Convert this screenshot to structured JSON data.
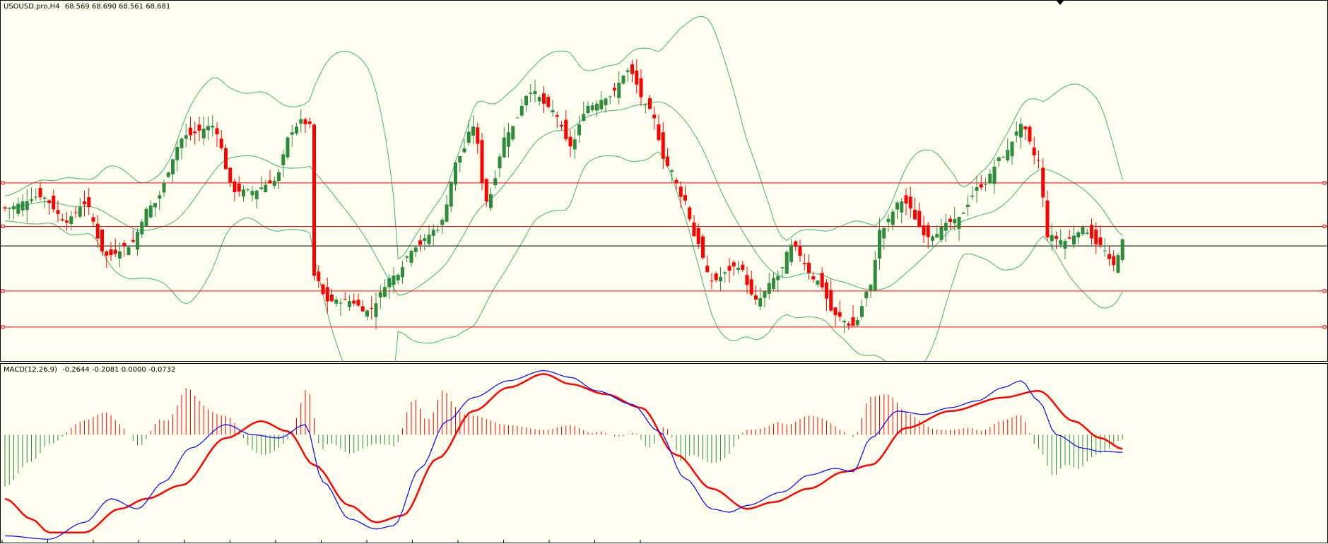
{
  "window": {
    "symbol": "USOUSD.pro,H4",
    "ohlc": "68.569 68.690 68.561 68.681"
  },
  "indicator": {
    "name": "MACD(12,26,9)",
    "values": "-0.2644 -0.2081 0.0000 -0.0732"
  },
  "colors": {
    "background": "#fffff0",
    "bull": "#2e8b3e",
    "bear": "#ff0000",
    "bands": "#3cb371",
    "level_lines": "#ff0000",
    "price_line": "#000000",
    "macd_line": "#0000ff",
    "signal_line": "#ff0000",
    "hist_positive": "#ff0000",
    "hist_negative": "#2e8b3e"
  },
  "chart_data": [
    {
      "type": "candlestick",
      "symbol": "USOUSD.pro",
      "timeframe": "H4",
      "ylim": [
        66.2,
        73.4
      ],
      "horizontal_levels": [
        69.76,
        68.89,
        67.6,
        66.88
      ],
      "bid_line": 68.5,
      "bollinger_bands": true,
      "anchors": [
        [
          0,
          69.25
        ],
        [
          8,
          69.5
        ],
        [
          14,
          69.0
        ],
        [
          18,
          69.35
        ],
        [
          23,
          68.3
        ],
        [
          28,
          68.5
        ],
        [
          33,
          69.3
        ],
        [
          41,
          70.7
        ],
        [
          47,
          70.9
        ],
        [
          52,
          69.6
        ],
        [
          56,
          69.6
        ],
        [
          61,
          69.8
        ],
        [
          65,
          70.8
        ],
        [
          67,
          71.0
        ],
        [
          69,
          70.9
        ],
        [
          70,
          67.9
        ],
        [
          73,
          67.4
        ],
        [
          78,
          67.4
        ],
        [
          82,
          67.2
        ],
        [
          88,
          67.9
        ],
        [
          93,
          68.5
        ],
        [
          98,
          68.85
        ],
        [
          103,
          70.3
        ],
        [
          106,
          70.9
        ],
        [
          109,
          69.4
        ],
        [
          114,
          70.8
        ],
        [
          119,
          71.6
        ],
        [
          124,
          71.2
        ],
        [
          128,
          70.5
        ],
        [
          132,
          71.3
        ],
        [
          137,
          71.5
        ],
        [
          141,
          72.0
        ],
        [
          146,
          71.2
        ],
        [
          150,
          70.1
        ],
        [
          154,
          69.4
        ],
        [
          156,
          68.7
        ],
        [
          160,
          67.8
        ],
        [
          166,
          68.1
        ],
        [
          170,
          67.4
        ],
        [
          175,
          67.9
        ],
        [
          178,
          68.5
        ],
        [
          184,
          67.8
        ],
        [
          188,
          67.1
        ],
        [
          192,
          66.9
        ],
        [
          196,
          67.7
        ],
        [
          198,
          68.8
        ],
        [
          203,
          69.4
        ],
        [
          209,
          68.7
        ],
        [
          215,
          69.0
        ],
        [
          221,
          69.7
        ],
        [
          226,
          70.3
        ],
        [
          230,
          70.9
        ],
        [
          234,
          70.2
        ],
        [
          236,
          68.7
        ],
        [
          240,
          68.6
        ],
        [
          244,
          68.85
        ],
        [
          248,
          68.5
        ],
        [
          251,
          68.1
        ],
        [
          253,
          68.6
        ]
      ],
      "x_count": 254
    },
    {
      "type": "macd",
      "params": "12,26,9",
      "ylim": [
        -1.6,
        1.05
      ],
      "x_count": 254,
      "macd_anchors": [
        [
          0,
          -1.5
        ],
        [
          10,
          -1.55
        ],
        [
          18,
          -1.3
        ],
        [
          24,
          -0.95
        ],
        [
          30,
          -1.1
        ],
        [
          36,
          -0.7
        ],
        [
          42,
          -0.2
        ],
        [
          50,
          0.15
        ],
        [
          56,
          0.0
        ],
        [
          62,
          -0.05
        ],
        [
          68,
          0.15
        ],
        [
          72,
          -0.7
        ],
        [
          78,
          -1.25
        ],
        [
          84,
          -1.4
        ],
        [
          88,
          -1.35
        ],
        [
          94,
          -0.5
        ],
        [
          100,
          0.2
        ],
        [
          106,
          0.55
        ],
        [
          114,
          0.8
        ],
        [
          122,
          0.95
        ],
        [
          128,
          0.85
        ],
        [
          134,
          0.65
        ],
        [
          142,
          0.45
        ],
        [
          148,
          0.05
        ],
        [
          154,
          -0.65
        ],
        [
          160,
          -1.1
        ],
        [
          164,
          -1.15
        ],
        [
          168,
          -1.05
        ],
        [
          176,
          -0.85
        ],
        [
          182,
          -0.6
        ],
        [
          188,
          -0.5
        ],
        [
          192,
          -0.55
        ],
        [
          196,
          -0.05
        ],
        [
          202,
          0.35
        ],
        [
          208,
          0.3
        ],
        [
          214,
          0.4
        ],
        [
          220,
          0.5
        ],
        [
          226,
          0.7
        ],
        [
          230,
          0.8
        ],
        [
          234,
          0.5
        ],
        [
          238,
          0.0
        ],
        [
          244,
          -0.2
        ],
        [
          248,
          -0.25
        ],
        [
          253,
          -0.26
        ]
      ],
      "signal_anchors": [
        [
          0,
          -0.95
        ],
        [
          6,
          -1.25
        ],
        [
          10,
          -1.45
        ],
        [
          18,
          -1.45
        ],
        [
          26,
          -1.1
        ],
        [
          32,
          -0.95
        ],
        [
          40,
          -0.75
        ],
        [
          50,
          -0.05
        ],
        [
          58,
          0.2
        ],
        [
          64,
          0.05
        ],
        [
          70,
          -0.45
        ],
        [
          78,
          -1.05
        ],
        [
          84,
          -1.3
        ],
        [
          90,
          -1.2
        ],
        [
          98,
          -0.35
        ],
        [
          106,
          0.35
        ],
        [
          114,
          0.7
        ],
        [
          122,
          0.9
        ],
        [
          128,
          0.75
        ],
        [
          136,
          0.6
        ],
        [
          144,
          0.4
        ],
        [
          152,
          -0.3
        ],
        [
          160,
          -0.8
        ],
        [
          168,
          -1.1
        ],
        [
          174,
          -1.0
        ],
        [
          182,
          -0.8
        ],
        [
          190,
          -0.55
        ],
        [
          196,
          -0.45
        ],
        [
          204,
          0.1
        ],
        [
          214,
          0.35
        ],
        [
          226,
          0.55
        ],
        [
          234,
          0.65
        ],
        [
          242,
          0.2
        ],
        [
          248,
          -0.05
        ],
        [
          253,
          -0.21
        ]
      ]
    }
  ]
}
